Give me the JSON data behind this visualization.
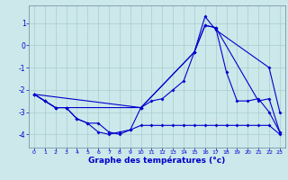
{
  "xlabel": "Graphe des températures (°c)",
  "background_color": "#cce8ea",
  "grid_color": "#aacccc",
  "line_color": "#0000cc",
  "x_ticks": [
    0,
    1,
    2,
    3,
    4,
    5,
    6,
    7,
    8,
    9,
    10,
    11,
    12,
    13,
    14,
    15,
    16,
    17,
    18,
    19,
    20,
    21,
    22,
    23
  ],
  "xlim": [
    -0.5,
    23.5
  ],
  "ylim": [
    -4.6,
    1.8
  ],
  "y_ticks": [
    -4,
    -3,
    -2,
    -1,
    0,
    1
  ],
  "line1_x": [
    0,
    1,
    2,
    3,
    4,
    5,
    6,
    7,
    8,
    9,
    10,
    11,
    12,
    13,
    14,
    15,
    16,
    17,
    18,
    19,
    20,
    21,
    22,
    23
  ],
  "line1_y": [
    -2.2,
    -2.5,
    -2.8,
    -2.8,
    -3.3,
    -3.5,
    -3.9,
    -4.0,
    -3.9,
    -3.8,
    -3.6,
    -3.6,
    -3.6,
    -3.6,
    -3.6,
    -3.6,
    -3.6,
    -3.6,
    -3.6,
    -3.6,
    -3.6,
    -3.6,
    -3.6,
    -4.0
  ],
  "line2_x": [
    0,
    1,
    2,
    3,
    4,
    5,
    6,
    7,
    8,
    9,
    10,
    11,
    12,
    13,
    14,
    15,
    16,
    17,
    18,
    19,
    20,
    21,
    22,
    23
  ],
  "line2_y": [
    -2.2,
    -2.5,
    -2.8,
    -2.8,
    -3.3,
    -3.5,
    -3.5,
    -3.9,
    -4.0,
    -3.8,
    -2.8,
    -2.5,
    -2.4,
    -2.0,
    -1.6,
    -0.3,
    0.9,
    0.8,
    -1.2,
    -2.5,
    -2.5,
    -2.4,
    -3.0,
    -3.9
  ],
  "line3_x": [
    0,
    1,
    2,
    3,
    10,
    15,
    16,
    17,
    21,
    22,
    23
  ],
  "line3_y": [
    -2.2,
    -2.5,
    -2.8,
    -2.8,
    -2.8,
    -0.3,
    0.9,
    0.8,
    -2.5,
    -2.4,
    -3.9
  ],
  "line4_x": [
    0,
    10,
    15,
    16,
    17,
    22,
    23
  ],
  "line4_y": [
    -2.2,
    -2.8,
    -0.3,
    1.3,
    0.7,
    -1.0,
    -3.0
  ]
}
